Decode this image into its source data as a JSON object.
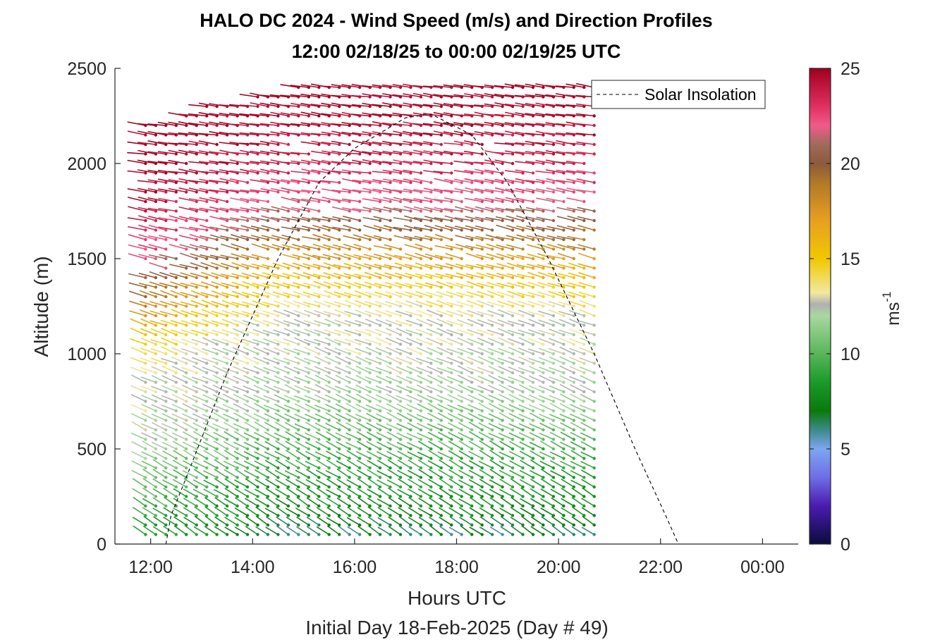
{
  "chart_data": {
    "type": "wind_barb_profile",
    "title_line1": "HALO DC 2024 - Wind Speed (m/s) and Direction Profiles",
    "title_line2": "12:00 02/18/25 to 00:00 02/19/25  UTC",
    "xlabel": "Hours UTC",
    "xlabel2": "Initial Day 18-Feb-2025 (Day # 49)",
    "ylabel": "Altitude (m)",
    "xlim": [
      11.3,
      24.7
    ],
    "ylim": [
      0,
      2500
    ],
    "x_ticks": [
      12,
      14,
      16,
      18,
      20,
      22,
      24
    ],
    "x_tick_labels": [
      "12:00",
      "14:00",
      "16:00",
      "18:00",
      "20:00",
      "22:00",
      "00:00"
    ],
    "y_ticks": [
      0,
      500,
      1000,
      1500,
      2000,
      2500
    ],
    "y_tick_labels": [
      "0",
      "500",
      "1000",
      "1500",
      "2000",
      "2500"
    ],
    "colorbar": {
      "range": [
        0,
        25
      ],
      "ticks": [
        0,
        5,
        10,
        15,
        20,
        25
      ],
      "tick_labels": [
        "0",
        "5",
        "10",
        "15",
        "20",
        "25"
      ],
      "label": "ms",
      "label_exponent": "-1",
      "stops": [
        {
          "v": 0,
          "c": "#0b0b3d"
        },
        {
          "v": 2,
          "c": "#4a1bb0"
        },
        {
          "v": 3.5,
          "c": "#6e6ee6"
        },
        {
          "v": 5,
          "c": "#7da6f0"
        },
        {
          "v": 6,
          "c": "#3c8a8a"
        },
        {
          "v": 7,
          "c": "#0a7a0a"
        },
        {
          "v": 8.5,
          "c": "#1a9a2a"
        },
        {
          "v": 10,
          "c": "#5ab55a"
        },
        {
          "v": 12,
          "c": "#a8d8a0"
        },
        {
          "v": 12.6,
          "c": "#b0b0b0"
        },
        {
          "v": 13.2,
          "c": "#f2e8a0"
        },
        {
          "v": 15,
          "c": "#f0c800"
        },
        {
          "v": 17,
          "c": "#e6a020"
        },
        {
          "v": 19,
          "c": "#b07828"
        },
        {
          "v": 20,
          "c": "#8c5a3c"
        },
        {
          "v": 21,
          "c": "#a06a5a"
        },
        {
          "v": 22,
          "c": "#f05a8a"
        },
        {
          "v": 23,
          "c": "#e03060"
        },
        {
          "v": 25,
          "c": "#a0001e"
        }
      ]
    },
    "legend": {
      "entries": [
        "Solar Insolation"
      ],
      "placement": "top-right",
      "line_style": "dashed"
    },
    "grid": false,
    "wind_profile_summary": {
      "time_range_hours": [
        11.9,
        20.8
      ],
      "profile_interval_hours": 0.2,
      "altitude_gate_spacing_m": 50,
      "observed_top_altitude_m": [
        {
          "t": 11.9,
          "top": 2200
        },
        {
          "t": 12.6,
          "top": 2250
        },
        {
          "t": 13.0,
          "top": 2300
        },
        {
          "t": 14.0,
          "top": 2350
        },
        {
          "t": 15.0,
          "top": 2420
        },
        {
          "t": 17.0,
          "top": 2420
        },
        {
          "t": 19.0,
          "top": 2450
        },
        {
          "t": 20.8,
          "top": 2430
        }
      ],
      "speed_vs_altitude_m_per_s": [
        {
          "alt": 50,
          "ws": 6.5
        },
        {
          "alt": 200,
          "ws": 8
        },
        {
          "alt": 400,
          "ws": 9
        },
        {
          "alt": 600,
          "ws": 10.5
        },
        {
          "alt": 800,
          "ws": 12
        },
        {
          "alt": 1000,
          "ws": 12.5
        },
        {
          "alt": 1200,
          "ws": 13
        },
        {
          "alt": 1400,
          "ws": 15.5
        },
        {
          "alt": 1600,
          "ws": 19
        },
        {
          "alt": 1800,
          "ws": 22
        },
        {
          "alt": 2000,
          "ws": 23.5
        },
        {
          "alt": 2200,
          "ws": 24.5
        },
        {
          "alt": 2450,
          "ws": 25
        }
      ],
      "early_profile_speed_offset_m_per_s": 4,
      "direction_description": "westerly winds; barbs tilt from NW-SE near surface to nearly horizontal aloft"
    },
    "solar_insolation_curve": [
      {
        "t": 11.3,
        "y": 0
      },
      {
        "t": 12.3,
        "y": 0
      },
      {
        "t": 12.4,
        "y": 150
      },
      {
        "t": 12.7,
        "y": 350
      },
      {
        "t": 13.5,
        "y": 900
      },
      {
        "t": 14.5,
        "y": 1500
      },
      {
        "t": 15.3,
        "y": 1900
      },
      {
        "t": 16.0,
        "y": 2080
      },
      {
        "t": 17.0,
        "y": 2240
      },
      {
        "t": 17.5,
        "y": 2260
      },
      {
        "t": 18.3,
        "y": 2150
      },
      {
        "t": 19.0,
        "y": 1900
      },
      {
        "t": 19.8,
        "y": 1500
      },
      {
        "t": 20.7,
        "y": 1000
      },
      {
        "t": 21.5,
        "y": 500
      },
      {
        "t": 22.1,
        "y": 150
      },
      {
        "t": 22.35,
        "y": 0
      },
      {
        "t": 24.7,
        "y": 0
      }
    ]
  }
}
